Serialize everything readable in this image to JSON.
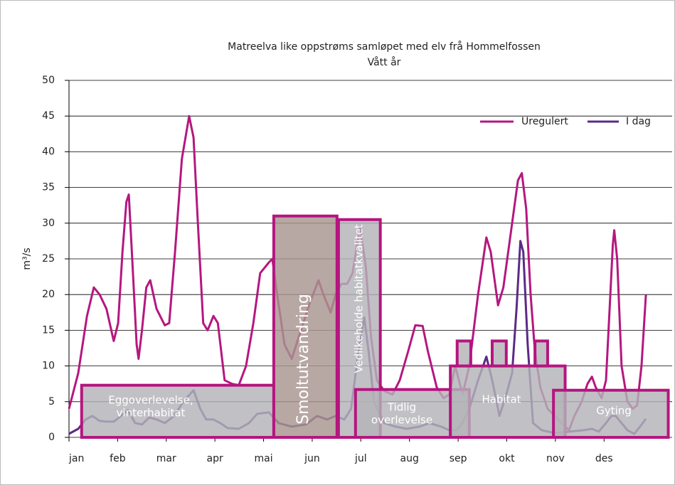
{
  "chart_data": {
    "type": "line",
    "title": "Matreelva like oppstrøms samløpet med elv frå Hommelfossen",
    "subtitle": "Vått år",
    "ylabel": "m³/s",
    "xlim": [
      0,
      12.4
    ],
    "ylim": [
      0,
      50
    ],
    "yticks": [
      0,
      5,
      10,
      15,
      20,
      25,
      30,
      35,
      40,
      45,
      50
    ],
    "xticks": [
      {
        "value": 0,
        "label": "jan"
      },
      {
        "value": 1,
        "label": "feb"
      },
      {
        "value": 2,
        "label": "mar"
      },
      {
        "value": 3,
        "label": "apr"
      },
      {
        "value": 4,
        "label": "mai"
      },
      {
        "value": 5,
        "label": "jun"
      },
      {
        "value": 6,
        "label": "jul"
      },
      {
        "value": 7,
        "label": "aug"
      },
      {
        "value": 8,
        "label": "sep"
      },
      {
        "value": 9,
        "label": "okt"
      },
      {
        "value": 10,
        "label": "nov"
      },
      {
        "value": 11,
        "label": "des"
      }
    ],
    "grid": true,
    "legend": "top-right",
    "series": [
      {
        "name": "Uregulert",
        "color": "#b5177f",
        "x": [
          0,
          0.19,
          0.37,
          0.51,
          0.63,
          0.77,
          0.92,
          1.01,
          1.1,
          1.18,
          1.23,
          1.3,
          1.39,
          1.43,
          1.5,
          1.59,
          1.67,
          1.8,
          1.97,
          2.06,
          2.18,
          2.32,
          2.47,
          2.56,
          2.65,
          2.76,
          2.85,
          2.97,
          3.06,
          3.2,
          3.35,
          3.49,
          3.64,
          3.79,
          3.93,
          4.11,
          4.18,
          4.28,
          4.43,
          4.58,
          4.72,
          4.96,
          5.13,
          5.23,
          5.38,
          5.48,
          5.6,
          5.72,
          5.83,
          5.98,
          6.1,
          6.21,
          6.33,
          6.48,
          6.65,
          6.8,
          6.97,
          7.12,
          7.27,
          7.38,
          7.56,
          7.7,
          7.82,
          7.94,
          8.09,
          8.23,
          8.41,
          8.58,
          8.67,
          8.82,
          8.93,
          9.11,
          9.23,
          9.31,
          9.4,
          9.49,
          9.58,
          9.69,
          9.84,
          9.99,
          10.13,
          10.28,
          10.39,
          10.54,
          10.66,
          10.75,
          10.83,
          10.95,
          11.04,
          11.13,
          11.18,
          11.21,
          11.27,
          11.36,
          11.48,
          11.59,
          11.68,
          11.77,
          11.86
        ],
        "values": [
          4,
          9,
          17,
          21,
          20,
          18,
          13.5,
          16,
          26,
          33,
          34,
          25,
          13,
          11,
          15,
          21,
          22,
          18,
          15.7,
          16,
          26,
          39,
          45,
          42,
          30,
          16,
          15,
          17,
          16,
          8,
          7.5,
          7.3,
          10,
          16,
          23,
          24.5,
          25,
          20,
          13,
          11,
          14,
          19,
          22,
          20,
          17.5,
          20,
          21.5,
          21.5,
          23,
          29.5,
          24,
          14,
          8,
          6.5,
          6,
          8,
          12,
          15.7,
          15.6,
          12,
          7,
          5.5,
          6,
          10,
          6,
          10,
          20,
          28,
          26,
          18.5,
          21,
          30,
          36,
          37,
          32,
          20,
          12,
          7,
          4,
          3,
          2,
          1,
          3,
          5,
          7.5,
          8.5,
          7,
          5.5,
          8,
          20,
          27,
          29,
          25,
          10,
          5,
          4,
          4.5,
          10,
          20
        ]
      },
      {
        "name": "I dag",
        "color": "#5b2a86",
        "x": [
          0,
          0.19,
          0.34,
          0.48,
          0.63,
          0.77,
          0.92,
          1.07,
          1.21,
          1.36,
          1.5,
          1.65,
          1.8,
          1.97,
          2.16,
          2.35,
          2.56,
          2.7,
          2.82,
          2.97,
          3.11,
          3.26,
          3.49,
          3.7,
          3.87,
          4.11,
          4.31,
          4.58,
          4.87,
          5.1,
          5.31,
          5.48,
          5.66,
          5.8,
          5.95,
          6.07,
          6.16,
          6.27,
          6.48,
          6.71,
          6.94,
          7.21,
          7.41,
          7.65,
          7.82,
          7.97,
          8.09,
          8.23,
          8.41,
          8.58,
          8.7,
          8.85,
          8.99,
          9.11,
          9.2,
          9.28,
          9.34,
          9.43,
          9.54,
          9.72,
          9.99,
          10.28,
          10.57,
          10.75,
          10.89,
          11.04,
          11.15,
          11.24,
          11.36,
          11.48,
          11.62,
          11.74,
          11.86
        ],
        "values": [
          0.5,
          1.2,
          2.5,
          3,
          2.3,
          2.2,
          2.2,
          3,
          3.8,
          2,
          1.8,
          2.8,
          2.5,
          2,
          3,
          5,
          6.6,
          4,
          2.5,
          2.5,
          2,
          1.3,
          1.2,
          2,
          3.3,
          3.5,
          2,
          1.5,
          1.8,
          3,
          2.5,
          3,
          2.5,
          4,
          12,
          16.8,
          12,
          5,
          2,
          1.5,
          1.2,
          1.5,
          2,
          1.5,
          1,
          1,
          2,
          4,
          8,
          11.3,
          8,
          3,
          6,
          9,
          18,
          27.5,
          26,
          13,
          2,
          1,
          0.6,
          0.8,
          1,
          1.2,
          0.8,
          2,
          3,
          3,
          2,
          1,
          0.5,
          1.5,
          2.6
        ]
      }
    ],
    "annotations": [
      {
        "label": [
          "Eggoverlevelse,",
          "vinterhabitat"
        ],
        "x": [
          0.26,
          4.21
        ],
        "y": [
          0,
          7.3
        ]
      },
      {
        "label": [
          "Smoltutvandring"
        ],
        "x": [
          4.21,
          5.51
        ],
        "y": [
          0,
          31
        ],
        "vertical": true,
        "color": "#a8958f"
      },
      {
        "label": [
          "Vedlikeholde habitatkvalitet"
        ],
        "x": [
          5.54,
          6.4
        ],
        "y": [
          0,
          30.5
        ],
        "vertical": true
      },
      {
        "label": [
          "Tidlig",
          "overlevelse"
        ],
        "x": [
          5.89,
          8.23
        ],
        "y": [
          0,
          6.7
        ]
      },
      {
        "label": [
          "Habitat"
        ],
        "x": [
          7.84,
          10.2
        ],
        "y": [
          0,
          10
        ]
      },
      {
        "x": [
          7.98,
          8.26
        ],
        "y": [
          10,
          13.5
        ]
      },
      {
        "x": [
          8.7,
          8.99
        ],
        "y": [
          10,
          13.5
        ]
      },
      {
        "x": [
          9.58,
          9.84
        ],
        "y": [
          10,
          13.5
        ]
      },
      {
        "label": [
          "Gyting"
        ],
        "x": [
          9.96,
          12.32
        ],
        "y": [
          0,
          6.6
        ]
      }
    ]
  }
}
